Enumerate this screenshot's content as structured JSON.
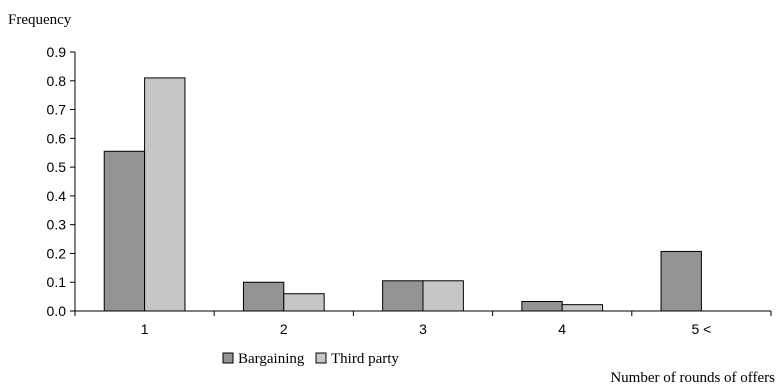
{
  "chart_data": {
    "type": "bar",
    "ylabel": "Frequency",
    "xlabel": "Number of rounds of offers",
    "categories": [
      "1",
      "2",
      "3",
      "4",
      "5 <"
    ],
    "ylim": [
      0,
      0.9
    ],
    "yticks": [
      "0.0",
      "0.1",
      "0.2",
      "0.3",
      "0.4",
      "0.5",
      "0.6",
      "0.7",
      "0.8",
      "0.9"
    ],
    "grid": false,
    "legend_position": "bottom",
    "series": [
      {
        "name": "Bargaining",
        "color": "#939393",
        "values": [
          0.555,
          0.1,
          0.105,
          0.033,
          0.207
        ]
      },
      {
        "name": "Third party",
        "color": "#c6c6c6",
        "values": [
          0.81,
          0.06,
          0.105,
          0.022,
          0.0
        ]
      }
    ]
  }
}
